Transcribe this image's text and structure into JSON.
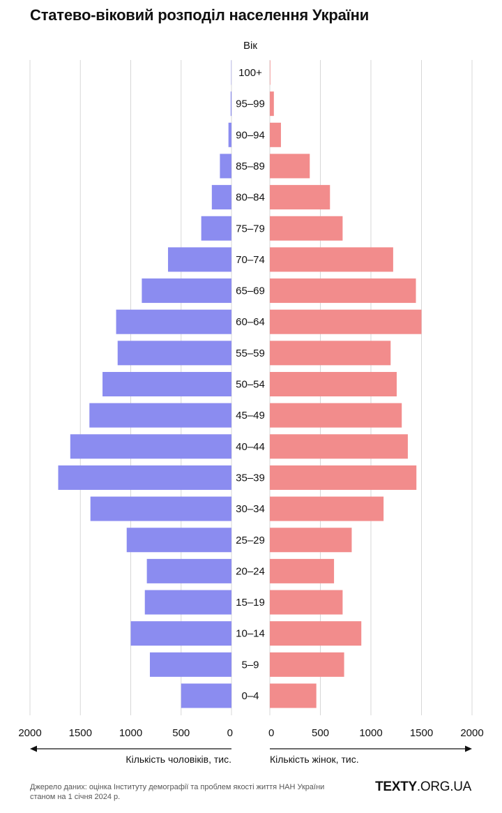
{
  "chart_data": {
    "type": "bar",
    "title": "Статево-віковий розподіл населення України",
    "center_label": "Вік",
    "categories": [
      "100+",
      "95–99",
      "90–94",
      "85–89",
      "80–84",
      "75–79",
      "70–74",
      "65–69",
      "60–64",
      "55–59",
      "50–54",
      "45–49",
      "40–44",
      "35–39",
      "30–34",
      "25–29",
      "20–24",
      "15–19",
      "10–14",
      "5–9",
      "0–4"
    ],
    "series": [
      {
        "name": "Кількість чоловіків, тис.",
        "side": "left",
        "color": "#8b8cf0",
        "values": [
          3,
          8,
          30,
          115,
          195,
          300,
          630,
          890,
          1145,
          1130,
          1280,
          1410,
          1600,
          1720,
          1400,
          1040,
          840,
          860,
          1000,
          810,
          500
        ]
      },
      {
        "name": "Кількість жінок, тис.",
        "side": "right",
        "color": "#f28c8c",
        "values": [
          5,
          40,
          110,
          395,
          595,
          720,
          1220,
          1445,
          1500,
          1195,
          1255,
          1305,
          1365,
          1450,
          1125,
          810,
          635,
          720,
          905,
          735,
          460
        ]
      }
    ],
    "x_ticks_left": [
      "2000",
      "1500",
      "1000",
      "500",
      "0"
    ],
    "x_ticks_right": [
      "0",
      "500",
      "1000",
      "1500",
      "2000"
    ],
    "xlim": [
      0,
      2000
    ],
    "xlabel_left": "Кількість чоловіків, тис.",
    "xlabel_right": "Кількість жінок, тис.",
    "grid": true
  },
  "footer": {
    "source_line1": "Джерело даних: оцінка Інституту демографії та проблем якості життя НАН України",
    "source_line2": "станом на 1 січня 2024 р.",
    "brand_bold": "TEXTY",
    "brand_rest": ".ORG.UA"
  }
}
